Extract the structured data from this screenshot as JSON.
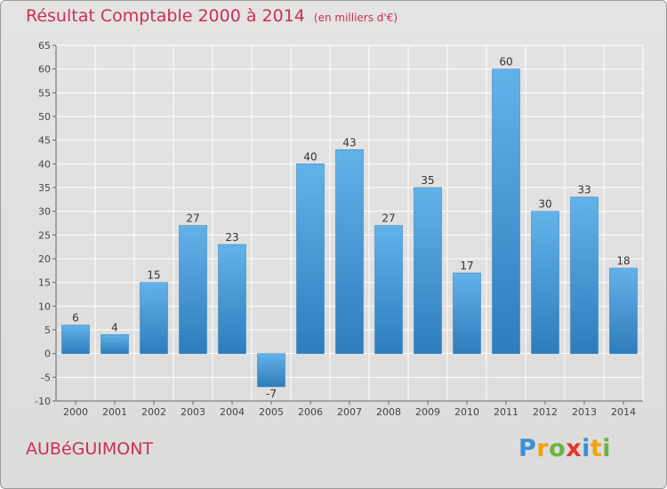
{
  "header": {
    "title": "Résultat Comptable 2000 à 2014",
    "subtitle": "(en milliers d'€)"
  },
  "footer": {
    "commune": "AUBéGUIMONT",
    "logo": [
      "P",
      "r",
      "o",
      "x",
      "i",
      "t",
      "i"
    ],
    "logo_colors": [
      "#3a8fd6",
      "#f2a20c",
      "#6db33f",
      "#e5342c",
      "#3a8fd6",
      "#f2a20c",
      "#6db33f"
    ]
  },
  "colors": {
    "bar_top": "#63b2ea",
    "bar_bottom": "#2d7dbd",
    "grid": "#ffffff",
    "title": "#cc2f52"
  },
  "chart_data": {
    "type": "bar",
    "title": "Résultat Comptable 2000 à 2014",
    "xlabel": "",
    "ylabel": "",
    "categories": [
      "2000",
      "2001",
      "2002",
      "2003",
      "2004",
      "2005",
      "2006",
      "2007",
      "2008",
      "2009",
      "2010",
      "2011",
      "2012",
      "2013",
      "2014"
    ],
    "values": [
      6,
      4,
      15,
      27,
      23,
      -7,
      40,
      43,
      27,
      35,
      17,
      60,
      30,
      33,
      18
    ],
    "ylim": [
      -10,
      65
    ],
    "yticks": [
      -10,
      -5,
      0,
      5,
      10,
      15,
      20,
      25,
      30,
      35,
      40,
      45,
      50,
      55,
      60,
      65
    ],
    "grid": true
  }
}
